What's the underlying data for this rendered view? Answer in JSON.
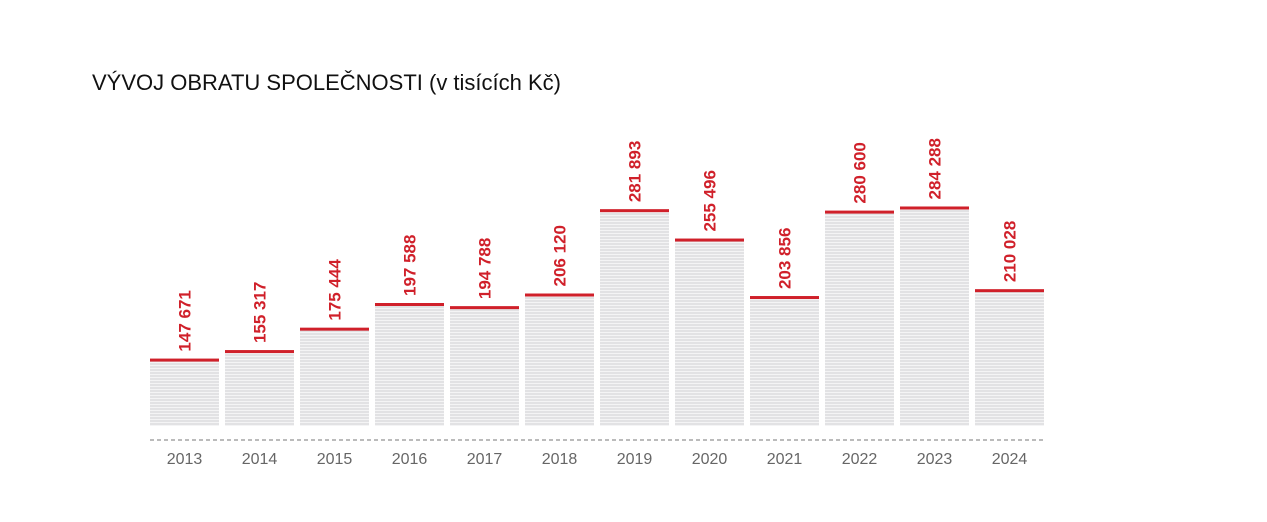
{
  "chart_data": {
    "type": "bar",
    "title": "VÝVOJ OBRATU SPOLEČNOSTI (v tisících Kč)",
    "categories": [
      "2013",
      "2014",
      "2015",
      "2016",
      "2017",
      "2018",
      "2019",
      "2020",
      "2021",
      "2022",
      "2023",
      "2024"
    ],
    "values": [
      147671,
      155317,
      175444,
      197588,
      194788,
      206120,
      281893,
      255496,
      203856,
      280600,
      284288,
      210028
    ],
    "value_labels": [
      "147 671",
      "155 317",
      "175 444",
      "197 588",
      "194 788",
      "206 120",
      "281 893",
      "255 496",
      "203 856",
      "280 600",
      "284 288",
      "210 028"
    ],
    "xlabel": "",
    "ylabel": "",
    "ylim": [
      88000,
      300000
    ],
    "grid": false,
    "legend": "none",
    "colors": {
      "accent": "#d0202a",
      "bar_fill": "#e2e2e4",
      "bar_stripe": "#f4f4f5",
      "axis_line": "#777777",
      "year_text": "#666666"
    }
  }
}
